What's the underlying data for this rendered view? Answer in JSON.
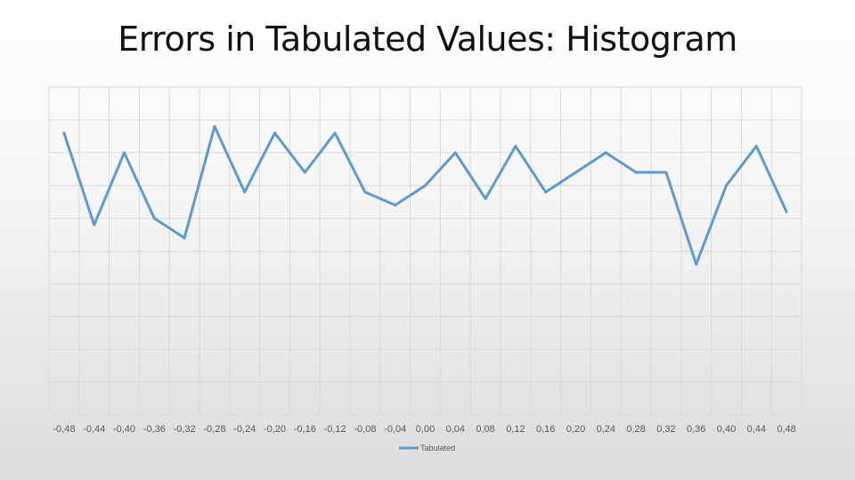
{
  "slide": {
    "title": "Errors in Tabulated Values: Histogram"
  },
  "chart_data": {
    "type": "line",
    "title": "",
    "xlabel": "",
    "ylabel": "",
    "categories": [
      "-0,48",
      "-0,44",
      "-0,40",
      "-0,36",
      "-0,32",
      "-0,28",
      "-0,24",
      "-0,20",
      "-0,16",
      "-0,12",
      "-0,08",
      "-0,04",
      "0,00",
      "0,04",
      "0,08",
      "0,12",
      "0,16",
      "0,20",
      "0,24",
      "0,28",
      "0,32",
      "0,36",
      "0,40",
      "0,44",
      "0,48"
    ],
    "series": [
      {
        "name": "Tabulated",
        "color": "#5B9BD5",
        "values": [
          43,
          29,
          40,
          30,
          27,
          44,
          34,
          43,
          37,
          43,
          34,
          32,
          35,
          40,
          33,
          41,
          34,
          37,
          40,
          37,
          37,
          23,
          35,
          41,
          31
        ]
      }
    ],
    "ylim": [
      0,
      50
    ],
    "y_tick_labels_shown": false,
    "grid": true,
    "legend_position": "bottom"
  }
}
